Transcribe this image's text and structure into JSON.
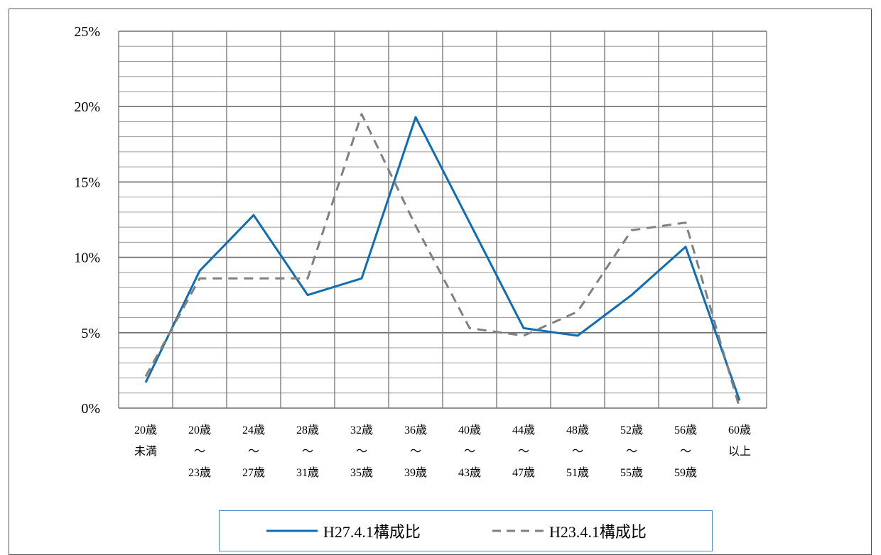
{
  "chart_data": {
    "type": "line",
    "title": "",
    "xlabel": "",
    "ylabel": "",
    "ylim": [
      0,
      25
    ],
    "yticks": [
      "25%",
      "20%",
      "15%",
      "10%",
      "5%",
      "0%"
    ],
    "categories": [
      [
        "20歳",
        "未満"
      ],
      [
        "20歳",
        "～",
        "23歳"
      ],
      [
        "24歳",
        "～",
        "27歳"
      ],
      [
        "28歳",
        "～",
        "31歳"
      ],
      [
        "32歳",
        "～",
        "35歳"
      ],
      [
        "36歳",
        "～",
        "39歳"
      ],
      [
        "40歳",
        "～",
        "43歳"
      ],
      [
        "44歳",
        "～",
        "47歳"
      ],
      [
        "48歳",
        "～",
        "51歳"
      ],
      [
        "52歳",
        "～",
        "55歳"
      ],
      [
        "56歳",
        "～",
        "59歳"
      ],
      [
        "60歳",
        "以上"
      ]
    ],
    "series": [
      {
        "name": "H27.4.1構成比",
        "color": "#0f6db5",
        "style": "solid",
        "values": [
          1.7,
          9.1,
          12.8,
          7.5,
          8.6,
          19.3,
          12.3,
          5.3,
          4.8,
          7.5,
          10.7,
          0.5
        ]
      },
      {
        "name": "H23.4.1構成比",
        "color": "#808080",
        "style": "dashed",
        "values": [
          2.1,
          8.6,
          8.6,
          8.6,
          19.5,
          12.1,
          5.3,
          4.8,
          6.4,
          11.8,
          12.3,
          0.0
        ]
      }
    ],
    "grid": true,
    "legend_position": "bottom"
  }
}
